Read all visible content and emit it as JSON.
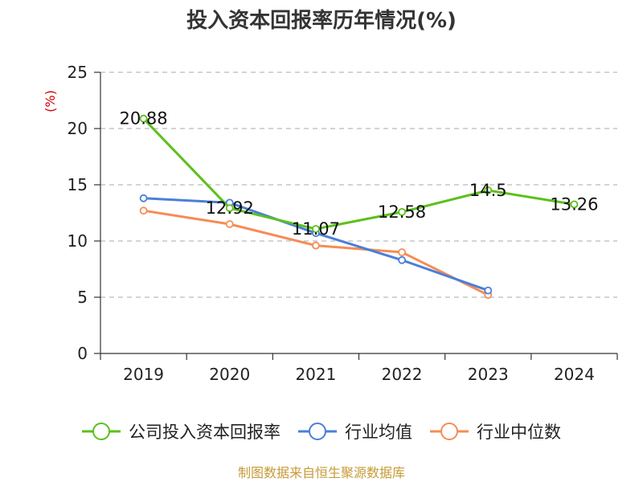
{
  "title": "投入资本回报率历年情况(%)",
  "unit": "(%)",
  "source": "制图数据来自恒生聚源数据库",
  "colors": {
    "company": "#5cc01b",
    "industry_avg": "#4a7fd9",
    "industry_median": "#f68c55",
    "grid": "#bbbbbb",
    "axis": "#333333"
  },
  "chart_data": {
    "type": "line",
    "title": "投入资本回报率历年情况(%)",
    "xlabel": "",
    "ylabel": "(%)",
    "categories": [
      "2019",
      "2020",
      "2021",
      "2022",
      "2023",
      "2024"
    ],
    "ylim": [
      0,
      25
    ],
    "yticks": [
      0,
      5,
      10,
      15,
      20,
      25
    ],
    "grid": true,
    "legend_position": "bottom",
    "series": [
      {
        "name": "公司投入资本回报率",
        "color_key": "company",
        "values": [
          20.88,
          12.92,
          11.07,
          12.58,
          14.5,
          13.26
        ],
        "labels": [
          "20.88",
          "12.92",
          "11.07",
          "12.58",
          "14.5",
          "13.26"
        ]
      },
      {
        "name": "行业均值",
        "color_key": "industry_avg",
        "values": [
          13.8,
          13.4,
          10.7,
          8.3,
          5.6,
          null
        ]
      },
      {
        "name": "行业中位数",
        "color_key": "industry_median",
        "values": [
          12.7,
          11.5,
          9.6,
          9.0,
          5.2,
          null
        ]
      }
    ]
  }
}
